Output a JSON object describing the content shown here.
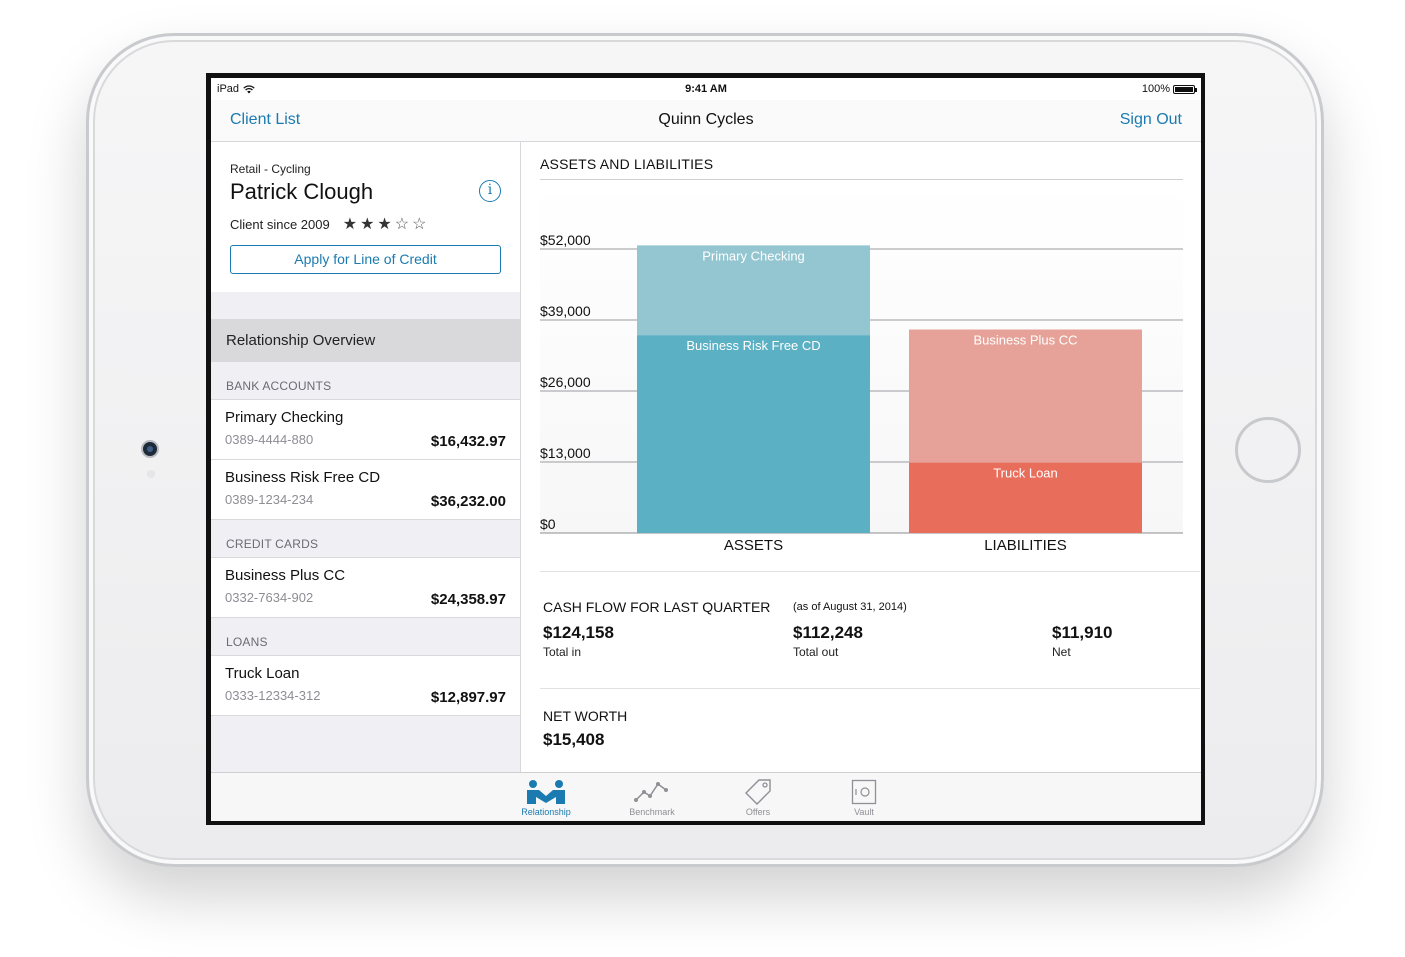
{
  "status_bar": {
    "carrier": "iPad",
    "time": "9:41 AM",
    "battery": "100%"
  },
  "nav": {
    "back_label": "Client List",
    "title": "Quinn Cycles",
    "signout_label": "Sign Out"
  },
  "profile": {
    "segment": "Retail - Cycling",
    "name": "Patrick Clough",
    "info_icon": "info-icon",
    "client_since": "Client since 2009",
    "rating": 3,
    "rating_max": 5,
    "apply_label": "Apply for Line of Credit"
  },
  "sidebar": {
    "overview_label": "Relationship Overview",
    "sections": [
      {
        "header": "BANK ACCOUNTS",
        "accounts": [
          {
            "name": "Primary Checking",
            "number": "0389-4444-880",
            "balance": "$16,432.97"
          },
          {
            "name": "Business Risk Free CD",
            "number": "0389-1234-234",
            "balance": "$36,232.00"
          }
        ]
      },
      {
        "header": "CREDIT CARDS",
        "accounts": [
          {
            "name": "Business Plus CC",
            "number": "0332-7634-902",
            "balance": "$24,358.97"
          }
        ]
      },
      {
        "header": "LOANS",
        "accounts": [
          {
            "name": "Truck Loan",
            "number": "0333-12334-312",
            "balance": "$12,897.97"
          }
        ]
      }
    ]
  },
  "chart_title": "ASSETS AND LIABILITIES",
  "chart_data": {
    "type": "bar",
    "stacked": true,
    "categories": [
      "ASSETS",
      "LIABILITIES"
    ],
    "series": [
      {
        "name": "Business Risk Free CD",
        "category": "ASSETS",
        "value": 36232.0,
        "color": "#5bb0c4"
      },
      {
        "name": "Primary Checking",
        "category": "ASSETS",
        "value": 16432.97,
        "color": "#94c6d1"
      },
      {
        "name": "Truck Loan",
        "category": "LIABILITIES",
        "value": 12897.97,
        "color": "#e86e5b"
      },
      {
        "name": "Business Plus CC",
        "category": "LIABILITIES",
        "value": 24358.97,
        "color": "#e6a298"
      }
    ],
    "yticks": [
      0,
      13000,
      26000,
      39000,
      52000
    ],
    "ytick_labels": [
      "$0",
      "$13,000",
      "$26,000",
      "$39,000",
      "$52,000"
    ],
    "ylim": [
      0,
      52000
    ],
    "title": "ASSETS AND LIABILITIES",
    "grid": true
  },
  "cashflow": {
    "title": "CASH FLOW FOR LAST QUARTER",
    "as_of": "(as of August 31, 2014)",
    "items": [
      {
        "value": "$124,158",
        "label": "Total in"
      },
      {
        "value": "$112,248",
        "label": "Total out"
      },
      {
        "value": "$11,910",
        "label": "Net"
      }
    ]
  },
  "networth": {
    "title": "NET WORTH",
    "value": "$15,408"
  },
  "tabs": [
    {
      "label": "Relationship",
      "icon": "handshake-icon",
      "active": true
    },
    {
      "label": "Benchmark",
      "icon": "line-chart-icon",
      "active": false
    },
    {
      "label": "Offers",
      "icon": "tag-icon",
      "active": false
    },
    {
      "label": "Vault",
      "icon": "safe-icon",
      "active": false
    }
  ],
  "colors": {
    "accent": "#1b7bb0",
    "asset_dark": "#5bb0c4",
    "asset_light": "#94c6d1",
    "liab_dark": "#e86e5b",
    "liab_light": "#e6a298"
  }
}
